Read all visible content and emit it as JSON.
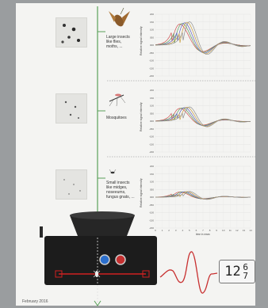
{
  "rows": [
    {
      "id": "large",
      "label": "Large insects\nlike flies,\nmoths, ..."
    },
    {
      "id": "mosq",
      "label": "Mosquitoes"
    },
    {
      "id": "small",
      "label": "Small insects\nlike midges,\nnoseeums,\nfungus gnats, ..."
    }
  ],
  "charts": {
    "ylabel": "Relative signal intensity",
    "xlabel": "time in msec",
    "yticks": [
      "200",
      "150",
      "100",
      "050",
      "000",
      "-050",
      "-100",
      "-150",
      "-200"
    ],
    "xticks": [
      "0",
      "1",
      "2",
      "3",
      "4",
      "5",
      "6",
      "7",
      "8",
      "9",
      "10",
      "11",
      "12",
      "13",
      "14"
    ]
  },
  "counter": {
    "lead": "12",
    "top_digit": "6",
    "bottom_digit": "7"
  },
  "footer": {
    "date": "February 2016"
  },
  "colors": {
    "series": [
      "#d05050",
      "#5a9a5a",
      "#6060c0",
      "#c8a040",
      "#909090"
    ],
    "stem": "#5aa05a",
    "trap_body": "#1c1c1c",
    "wave": "#c83030"
  }
}
